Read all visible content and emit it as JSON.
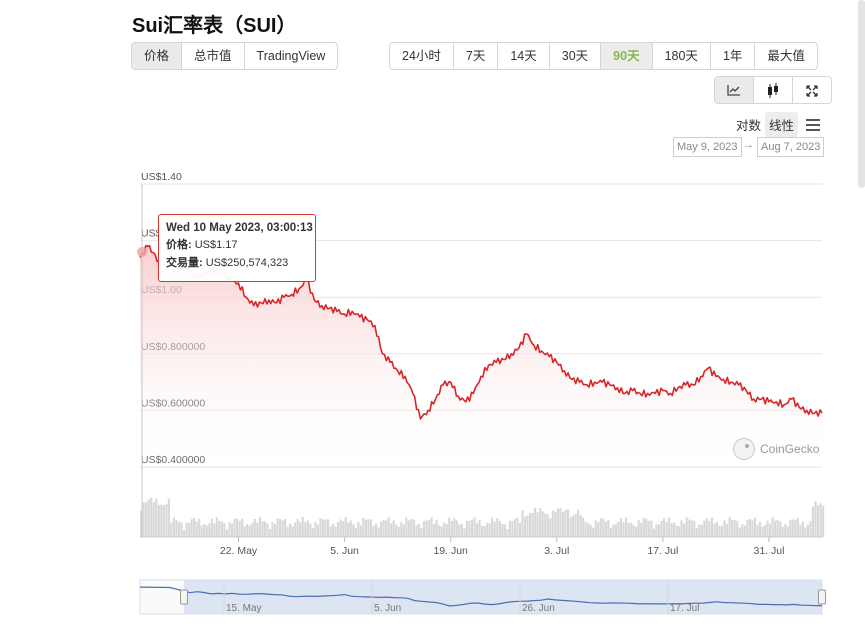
{
  "page": {
    "title": "Sui汇率表（SUI）"
  },
  "type_tabs": [
    "价格",
    "总市值",
    "TradingView"
  ],
  "range_tabs": [
    "24小时",
    "7天",
    "14天",
    "30天",
    "90天",
    "180天",
    "1年",
    "最大值"
  ],
  "view_icons": [
    "line-chart-icon",
    "candlestick-icon",
    "fullscreen-icon"
  ],
  "scale": {
    "log": "对数",
    "linear": "线性"
  },
  "date_range": {
    "from": "May 9, 2023",
    "arrow": "→",
    "to": "Aug 7, 2023"
  },
  "tooltip": {
    "date": "Wed 10 May 2023, 03:00:13",
    "price_label": "价格:",
    "price_value": "US$1.17",
    "volume_label": "交易量:",
    "volume_value": "US$250,574,323"
  },
  "watermark": "CoinGecko",
  "colors": {
    "line": "#d62728",
    "fill_top": "#f7c5c5",
    "volume": "#d9d9d9",
    "navigator_line": "#4a6fb5",
    "navigator_fill": "#d6dff0",
    "active_range": "#8ab54a"
  },
  "chart_data": {
    "type": "line",
    "ylim": [
      0.4,
      1.4
    ],
    "yticks": [
      1.4,
      1.2,
      1.0,
      0.8,
      0.6,
      0.4
    ],
    "ytick_labels": [
      "US$1.40",
      "US$1.20",
      "US$1.00",
      "US$0.800000",
      "US$0.600000",
      "US$0.400000"
    ],
    "x_start": "2023-05-09",
    "x_end": "2023-08-07",
    "xticks": [
      "2023-05-22",
      "2023-06-05",
      "2023-06-19",
      "2023-07-03",
      "2023-07-17",
      "2023-07-31"
    ],
    "xtick_labels": [
      "22. May",
      "5. Jun",
      "19. Jun",
      "3. Jul",
      "17. Jul",
      "31. Jul"
    ],
    "series": [
      {
        "points": [
          [
            "2023-05-09",
            1.14
          ],
          [
            "2023-05-10",
            1.18
          ],
          [
            "2023-05-11",
            1.15
          ],
          [
            "2023-05-12",
            1.09
          ],
          [
            "2023-05-13",
            1.11
          ],
          [
            "2023-05-14",
            1.09
          ],
          [
            "2023-05-15",
            1.11
          ],
          [
            "2023-05-16",
            1.08
          ],
          [
            "2023-05-17",
            1.07
          ],
          [
            "2023-05-18",
            1.09
          ],
          [
            "2023-05-19",
            1.1
          ],
          [
            "2023-05-20",
            1.08
          ],
          [
            "2023-05-21",
            1.06
          ],
          [
            "2023-05-22",
            1.05
          ],
          [
            "2023-05-23",
            1.0
          ],
          [
            "2023-05-24",
            0.97
          ],
          [
            "2023-05-25",
            0.98
          ],
          [
            "2023-05-26",
            0.99
          ],
          [
            "2023-05-27",
            0.98
          ],
          [
            "2023-05-28",
            1.0
          ],
          [
            "2023-05-29",
            1.01
          ],
          [
            "2023-05-30",
            1.03
          ],
          [
            "2023-05-31",
            1.06
          ],
          [
            "2023-06-01",
            0.99
          ],
          [
            "2023-06-02",
            0.97
          ],
          [
            "2023-06-03",
            0.96
          ],
          [
            "2023-06-04",
            0.95
          ],
          [
            "2023-06-05",
            0.94
          ],
          [
            "2023-06-06",
            0.95
          ],
          [
            "2023-06-07",
            0.93
          ],
          [
            "2023-06-08",
            0.92
          ],
          [
            "2023-06-09",
            0.9
          ],
          [
            "2023-06-10",
            0.8
          ],
          [
            "2023-06-11",
            0.77
          ],
          [
            "2023-06-12",
            0.74
          ],
          [
            "2023-06-13",
            0.72
          ],
          [
            "2023-06-14",
            0.66
          ],
          [
            "2023-06-15",
            0.57
          ],
          [
            "2023-06-16",
            0.6
          ],
          [
            "2023-06-17",
            0.64
          ],
          [
            "2023-06-18",
            0.69
          ],
          [
            "2023-06-19",
            0.7
          ],
          [
            "2023-06-20",
            0.65
          ],
          [
            "2023-06-21",
            0.63
          ],
          [
            "2023-06-22",
            0.66
          ],
          [
            "2023-06-23",
            0.72
          ],
          [
            "2023-06-24",
            0.76
          ],
          [
            "2023-06-25",
            0.77
          ],
          [
            "2023-06-26",
            0.78
          ],
          [
            "2023-06-27",
            0.8
          ],
          [
            "2023-06-28",
            0.82
          ],
          [
            "2023-06-29",
            0.87
          ],
          [
            "2023-06-30",
            0.83
          ],
          [
            "2023-07-01",
            0.81
          ],
          [
            "2023-07-02",
            0.79
          ],
          [
            "2023-07-03",
            0.77
          ],
          [
            "2023-07-04",
            0.74
          ],
          [
            "2023-07-05",
            0.71
          ],
          [
            "2023-07-06",
            0.7
          ],
          [
            "2023-07-07",
            0.69
          ],
          [
            "2023-07-08",
            0.7
          ],
          [
            "2023-07-09",
            0.7
          ],
          [
            "2023-07-10",
            0.69
          ],
          [
            "2023-07-11",
            0.68
          ],
          [
            "2023-07-12",
            0.66
          ],
          [
            "2023-07-13",
            0.67
          ],
          [
            "2023-07-14",
            0.66
          ],
          [
            "2023-07-15",
            0.66
          ],
          [
            "2023-07-16",
            0.66
          ],
          [
            "2023-07-17",
            0.67
          ],
          [
            "2023-07-18",
            0.66
          ],
          [
            "2023-07-19",
            0.68
          ],
          [
            "2023-07-20",
            0.69
          ],
          [
            "2023-07-21",
            0.69
          ],
          [
            "2023-07-22",
            0.72
          ],
          [
            "2023-07-23",
            0.75
          ],
          [
            "2023-07-24",
            0.72
          ],
          [
            "2023-07-25",
            0.71
          ],
          [
            "2023-07-26",
            0.7
          ],
          [
            "2023-07-27",
            0.69
          ],
          [
            "2023-07-28",
            0.67
          ],
          [
            "2023-07-29",
            0.64
          ],
          [
            "2023-07-30",
            0.64
          ],
          [
            "2023-07-31",
            0.63
          ],
          [
            "2023-08-01",
            0.63
          ],
          [
            "2023-08-02",
            0.62
          ],
          [
            "2023-08-03",
            0.64
          ],
          [
            "2023-08-04",
            0.61
          ],
          [
            "2023-08-05",
            0.6
          ],
          [
            "2023-08-06",
            0.59
          ],
          [
            "2023-08-07",
            0.59
          ]
        ]
      }
    ],
    "grid": true
  },
  "navigator": {
    "xtick_labels": [
      "15. May",
      "5. Jun",
      "26. Jun",
      "17. Jul"
    ]
  }
}
